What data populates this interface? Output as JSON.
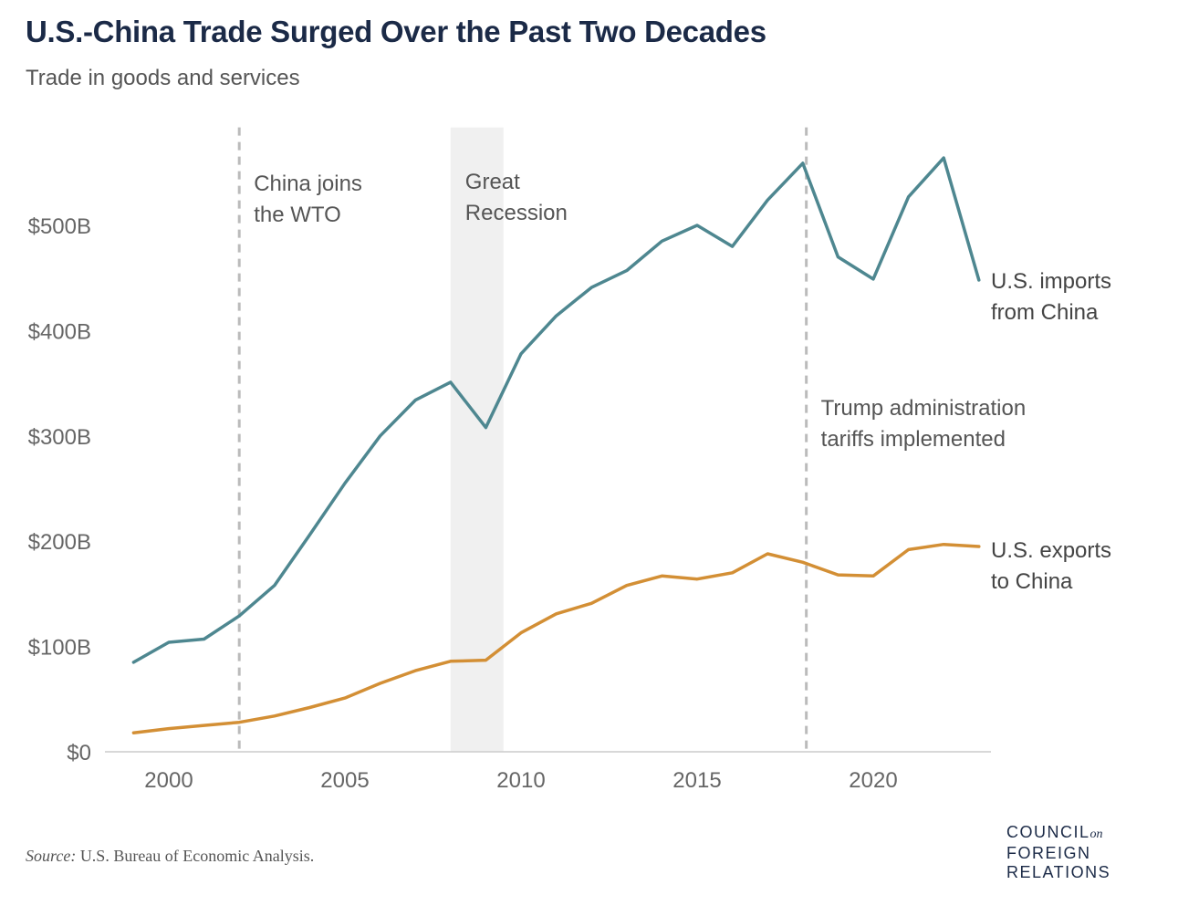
{
  "header": {
    "title": "U.S.-China Trade Surged Over the Past Two Decades",
    "subtitle": "Trade in goods and services"
  },
  "footer": {
    "source_label": "Source:",
    "source_text": "U.S. Bureau of Economic Analysis.",
    "logo_line1": "COUNCIL",
    "logo_on": "on",
    "logo_line2": "FOREIGN",
    "logo_line3": "RELATIONS"
  },
  "chart_data": {
    "type": "line",
    "title": "U.S.-China Trade Surged Over the Past Two Decades",
    "subtitle": "Trade in goods and services",
    "xlabel": "",
    "ylabel": "",
    "xlim": [
      1998.5,
      2024.1
    ],
    "ylim": [
      0,
      580
    ],
    "x_ticks": [
      2000,
      2005,
      2010,
      2015,
      2020
    ],
    "y_ticks": [
      {
        "value": 0,
        "label": "$0"
      },
      {
        "value": 100,
        "label": "$100B"
      },
      {
        "value": 200,
        "label": "$200B"
      },
      {
        "value": 300,
        "label": "$300B"
      },
      {
        "value": 400,
        "label": "$400B"
      },
      {
        "value": 500,
        "label": "$500B"
      }
    ],
    "x": [
      1999,
      2000,
      2001,
      2002,
      2003,
      2004,
      2005,
      2006,
      2007,
      2008,
      2009,
      2010,
      2011,
      2012,
      2013,
      2014,
      2015,
      2016,
      2017,
      2018,
      2019,
      2020,
      2021,
      2022,
      2023
    ],
    "series": [
      {
        "name": "U.S. imports from China",
        "label_lines": [
          "U.S. imports",
          "from China"
        ],
        "color": "#4e8790",
        "values": [
          85,
          104,
          107,
          129,
          158,
          206,
          255,
          300,
          334,
          351,
          308,
          378,
          414,
          441,
          457,
          485,
          500,
          480,
          524,
          559,
          470,
          449,
          527,
          564,
          448
        ]
      },
      {
        "name": "U.S. exports to China",
        "label_lines": [
          "U.S. exports",
          "to China"
        ],
        "color": "#d38f35",
        "values": [
          18,
          22,
          25,
          28,
          34,
          42,
          51,
          65,
          77,
          86,
          87,
          113,
          131,
          141,
          158,
          167,
          164,
          170,
          188,
          180,
          168,
          167,
          192,
          197,
          195
        ]
      }
    ],
    "annotations": [
      {
        "type": "vline",
        "x": 2002,
        "label_lines": [
          "China joins",
          "the WTO"
        ]
      },
      {
        "type": "band",
        "x_start": 2008,
        "x_end": 2009.5,
        "label_lines": [
          "Great",
          "Recession"
        ]
      },
      {
        "type": "vline",
        "x": 2018.1,
        "label_lines": [
          "Trump administration",
          "tariffs implemented"
        ]
      }
    ],
    "grid": false,
    "legend": "inline-right"
  }
}
